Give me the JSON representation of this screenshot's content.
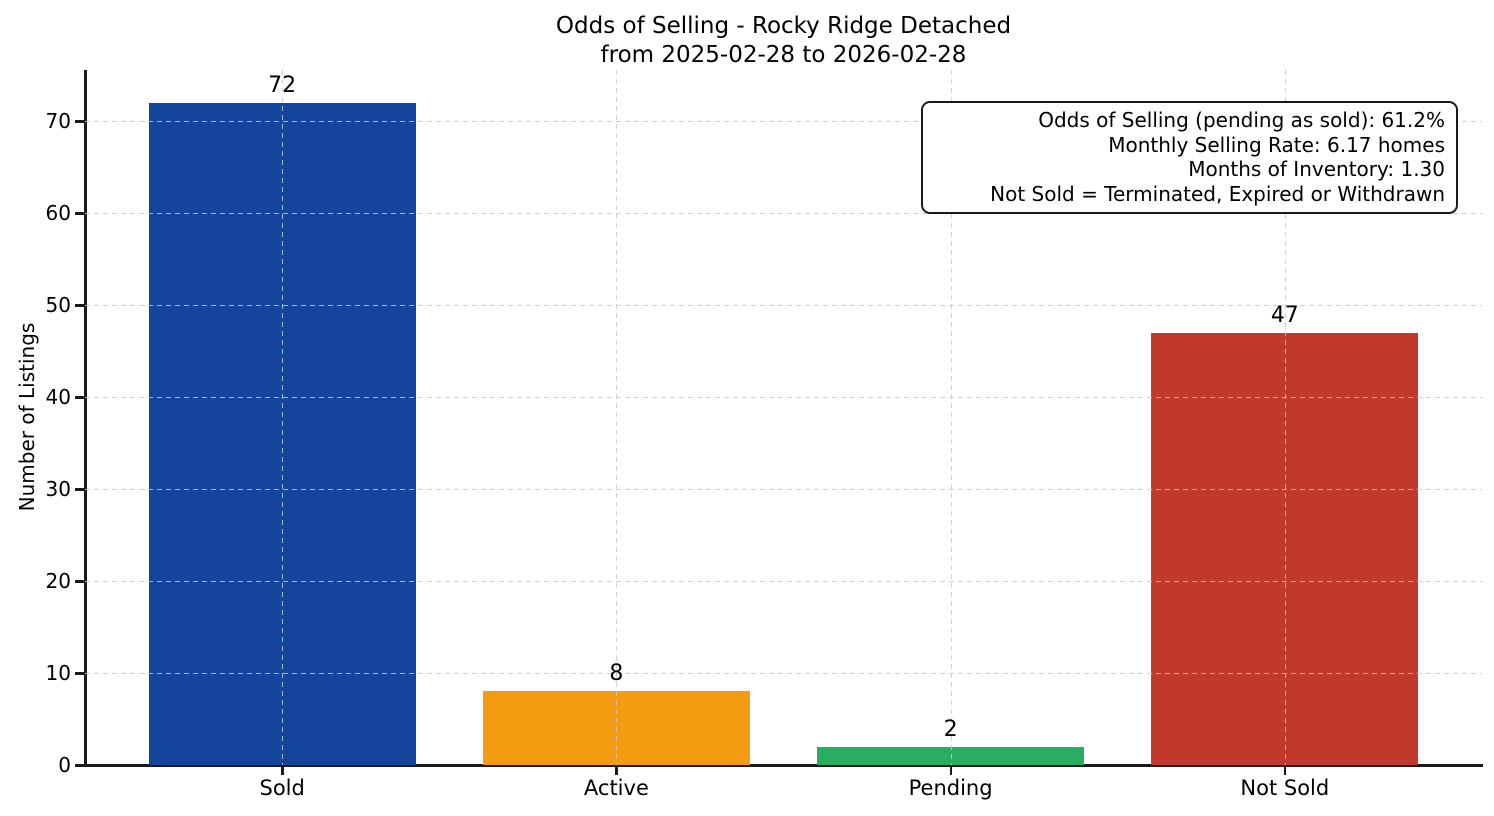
{
  "chart_data": {
    "type": "bar",
    "title_lines": [
      "Odds of Selling - Rocky Ridge Detached",
      "from 2025-02-28 to 2026-02-28"
    ],
    "categories": [
      "Sold",
      "Active",
      "Pending",
      "Not Sold"
    ],
    "values": [
      72,
      8,
      2,
      47
    ],
    "bar_colors": [
      "#14459c",
      "#f39c12",
      "#27ae60",
      "#c0392b"
    ],
    "value_labels": [
      "72",
      "8",
      "2",
      "47"
    ],
    "xlabel": "",
    "ylabel": "Number of Listings",
    "yticks": [
      0,
      10,
      20,
      30,
      40,
      50,
      60,
      70
    ],
    "ylim": [
      0,
      75.6
    ],
    "xlim": [
      -0.59,
      3.59
    ],
    "bar_width": 0.8,
    "grid": "dashed both axes, drawn above bars",
    "legend": "none",
    "annotation_lines": [
      "Odds of Selling (pending as sold): 61.2%",
      "Monthly Selling Rate: 6.17 homes",
      "Months of Inventory: 1.30",
      "Not Sold = Terminated, Expired or Withdrawn"
    ],
    "colors": {
      "text": "#000000",
      "grid": "#c9c9c9",
      "spine": "#1a1a1a",
      "background": "#ffffff",
      "annotation_border": "#1a1a1a"
    }
  }
}
